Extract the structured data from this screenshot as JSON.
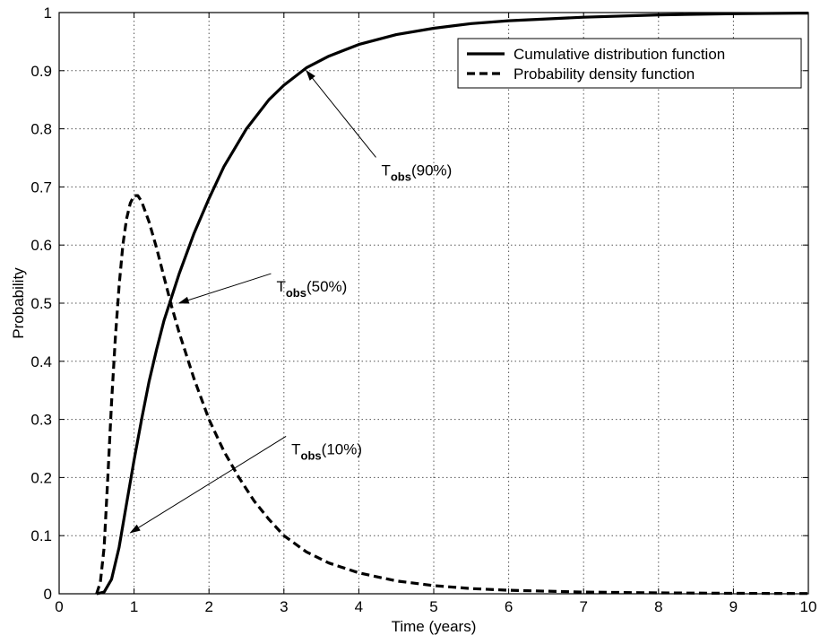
{
  "chart_data": {
    "type": "line",
    "title": "",
    "xlabel": "Time (years)",
    "ylabel": "Probability",
    "xlim": [
      0,
      10
    ],
    "ylim": [
      0,
      1
    ],
    "xticks": [
      0,
      1,
      2,
      3,
      4,
      5,
      6,
      7,
      8,
      9,
      10
    ],
    "yticks": [
      0,
      0.1,
      0.2,
      0.3,
      0.4,
      0.5,
      0.6,
      0.7,
      0.8,
      0.9,
      1
    ],
    "xtick_labels": [
      "0",
      "1",
      "2",
      "3",
      "4",
      "5",
      "6",
      "7",
      "8",
      "9",
      "10"
    ],
    "ytick_labels": [
      "0",
      "0.1",
      "0.2",
      "0.3",
      "0.4",
      "0.5",
      "0.6",
      "0.7",
      "0.8",
      "0.9",
      "1"
    ],
    "grid": true,
    "legend_position": "top-right",
    "series": [
      {
        "name": "Cumulative distribution function",
        "style": "solid",
        "x": [
          0.5,
          0.6,
          0.7,
          0.8,
          0.9,
          1.0,
          1.1,
          1.2,
          1.3,
          1.4,
          1.5,
          1.6,
          1.8,
          2.0,
          2.2,
          2.5,
          2.8,
          3.0,
          3.3,
          3.6,
          4.0,
          4.5,
          5.0,
          5.5,
          6.0,
          7.0,
          8.0,
          9.0,
          10.0
        ],
        "y": [
          0.0,
          0.003,
          0.025,
          0.08,
          0.155,
          0.23,
          0.3,
          0.365,
          0.42,
          0.47,
          0.51,
          0.55,
          0.62,
          0.68,
          0.735,
          0.8,
          0.85,
          0.875,
          0.905,
          0.925,
          0.945,
          0.962,
          0.973,
          0.981,
          0.986,
          0.992,
          0.996,
          0.998,
          0.999
        ]
      },
      {
        "name": "Probability density function",
        "style": "dashed",
        "x": [
          0.5,
          0.55,
          0.6,
          0.65,
          0.7,
          0.75,
          0.8,
          0.85,
          0.9,
          0.95,
          1.0,
          1.05,
          1.1,
          1.2,
          1.3,
          1.4,
          1.5,
          1.6,
          1.8,
          2.0,
          2.2,
          2.4,
          2.6,
          2.8,
          3.0,
          3.3,
          3.6,
          4.0,
          4.5,
          5.0,
          5.5,
          6.0,
          7.0,
          8.0,
          9.0,
          10.0
        ],
        "y": [
          0.0,
          0.02,
          0.08,
          0.2,
          0.33,
          0.44,
          0.53,
          0.6,
          0.645,
          0.672,
          0.685,
          0.685,
          0.675,
          0.64,
          0.595,
          0.545,
          0.495,
          0.45,
          0.37,
          0.3,
          0.245,
          0.2,
          0.16,
          0.128,
          0.1,
          0.072,
          0.053,
          0.036,
          0.022,
          0.014,
          0.009,
          0.006,
          0.003,
          0.0015,
          0.0008,
          0.0004
        ]
      }
    ],
    "annotations": [
      {
        "text_main": "T",
        "text_sub": "obs",
        "text_suffix": "(90%)",
        "arrow_to": [
          3.3,
          0.9
        ],
        "text_at": [
          4.3,
          0.72
        ]
      },
      {
        "text_main": "T",
        "text_sub": "obs",
        "text_suffix": "(50%)",
        "arrow_to": [
          1.6,
          0.5
        ],
        "text_at": [
          2.9,
          0.52
        ]
      },
      {
        "text_main": "T",
        "text_sub": "obs",
        "text_suffix": "(10%)",
        "arrow_to": [
          0.95,
          0.105
        ],
        "text_at": [
          3.1,
          0.24
        ]
      }
    ]
  }
}
